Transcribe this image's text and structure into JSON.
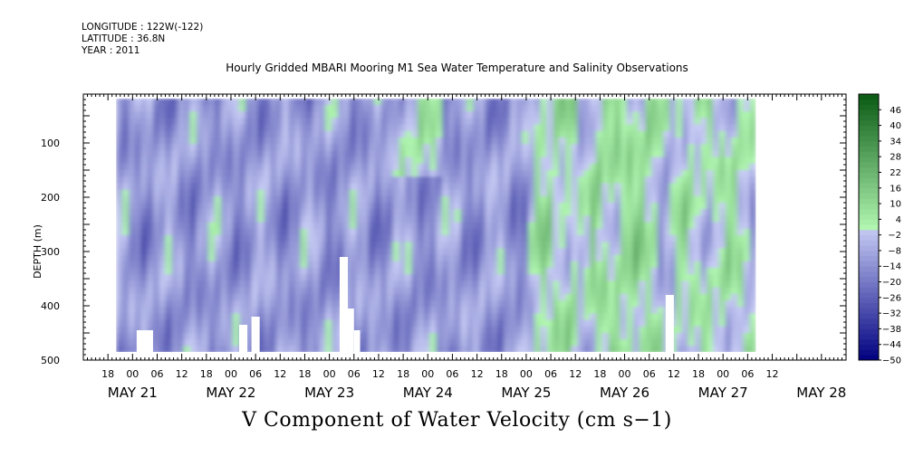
{
  "header": {
    "longitude": "LONGITUDE : 122W(-122)",
    "latitude": "LATITUDE : 36.8N",
    "year": "YEAR : 2011"
  },
  "chart_data": {
    "type": "heatmap",
    "title": "Hourly Gridded MBARI Mooring M1 Sea Water Temperature and Salinity Observations",
    "variable_label": "V Component of Water Velocity (cm s−1)",
    "ylabel": "DEPTH (m)",
    "ylim": [
      500,
      10
    ],
    "y_inverted": true,
    "y_ticks": [
      100,
      200,
      300,
      400,
      500
    ],
    "y_tick_labels": [
      "100",
      "200",
      "300",
      "400",
      "500"
    ],
    "x_range_hours": [
      -12,
      174
    ],
    "x_data_extent_hours": [
      -4,
      152
    ],
    "x_minor_labels": [
      "18",
      "00",
      "06",
      "12",
      "18",
      "00",
      "06",
      "12",
      "18",
      "00",
      "06",
      "12",
      "18",
      "00",
      "06",
      "12",
      "18",
      "00",
      "06",
      "12",
      "18",
      "00",
      "06",
      "12",
      "18",
      "00",
      "06",
      "12"
    ],
    "x_major_labels": [
      "MAY 21",
      "MAY 22",
      "MAY 23",
      "MAY 24",
      "MAY 25",
      "MAY 26",
      "MAY 27",
      "MAY 28"
    ],
    "colorbar_levels": [
      "46",
      "40",
      "34",
      "28",
      "22",
      "16",
      "10",
      "4",
      "−2",
      "−8",
      "−14",
      "−20",
      "−26",
      "−32",
      "−38",
      "−44",
      "−50"
    ],
    "colorbar_range": [
      -50,
      52
    ],
    "colorbar_colors": {
      "negative_min": "#000080",
      "negative_max": "#c8cdf5",
      "positive_min": "#b0f5b0",
      "positive_max": "#0a5a14"
    },
    "gaps_white": [
      {
        "hours": [
          1,
          5
        ],
        "depth": [
          445,
          485
        ]
      },
      {
        "hours": [
          26,
          28
        ],
        "depth": [
          435,
          485
        ]
      },
      {
        "hours": [
          29,
          31
        ],
        "depth": [
          420,
          485
        ]
      },
      {
        "hours": [
          50.5,
          52.5
        ],
        "depth": [
          310,
          485
        ]
      },
      {
        "hours": [
          52.5,
          54
        ],
        "depth": [
          405,
          485
        ]
      },
      {
        "hours": [
          54,
          55.5
        ],
        "depth": [
          445,
          485
        ]
      },
      {
        "hours": [
          130,
          132
        ],
        "depth": [
          380,
          485
        ]
      }
    ]
  }
}
